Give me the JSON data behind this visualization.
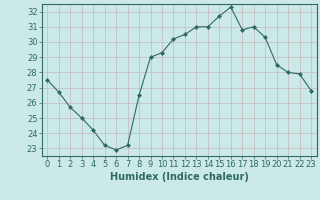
{
  "x": [
    0,
    1,
    2,
    3,
    4,
    5,
    6,
    7,
    8,
    9,
    10,
    11,
    12,
    13,
    14,
    15,
    16,
    17,
    18,
    19,
    20,
    21,
    22,
    23
  ],
  "y": [
    27.5,
    26.7,
    25.7,
    25.0,
    24.2,
    23.2,
    22.9,
    23.2,
    26.5,
    29.0,
    29.3,
    30.2,
    30.5,
    31.0,
    31.0,
    31.7,
    32.3,
    30.8,
    31.0,
    30.3,
    28.5,
    28.0,
    27.9,
    26.8
  ],
  "xlabel": "Humidex (Indice chaleur)",
  "ylim": [
    22.5,
    32.5
  ],
  "xlim": [
    -0.5,
    23.5
  ],
  "yticks": [
    23,
    24,
    25,
    26,
    27,
    28,
    29,
    30,
    31,
    32
  ],
  "xticks": [
    0,
    1,
    2,
    3,
    4,
    5,
    6,
    7,
    8,
    9,
    10,
    11,
    12,
    13,
    14,
    15,
    16,
    17,
    18,
    19,
    20,
    21,
    22,
    23
  ],
  "line_color": "#2e6b5e",
  "marker": "D",
  "marker_size": 2.0,
  "bg_color": "#cce9e9",
  "grid_color": "#c8b8b8",
  "font_color": "#2e6b5e",
  "xlabel_fontsize": 7.0,
  "tick_fontsize": 6.0,
  "fig_width": 3.2,
  "fig_height": 2.0,
  "dpi": 100
}
